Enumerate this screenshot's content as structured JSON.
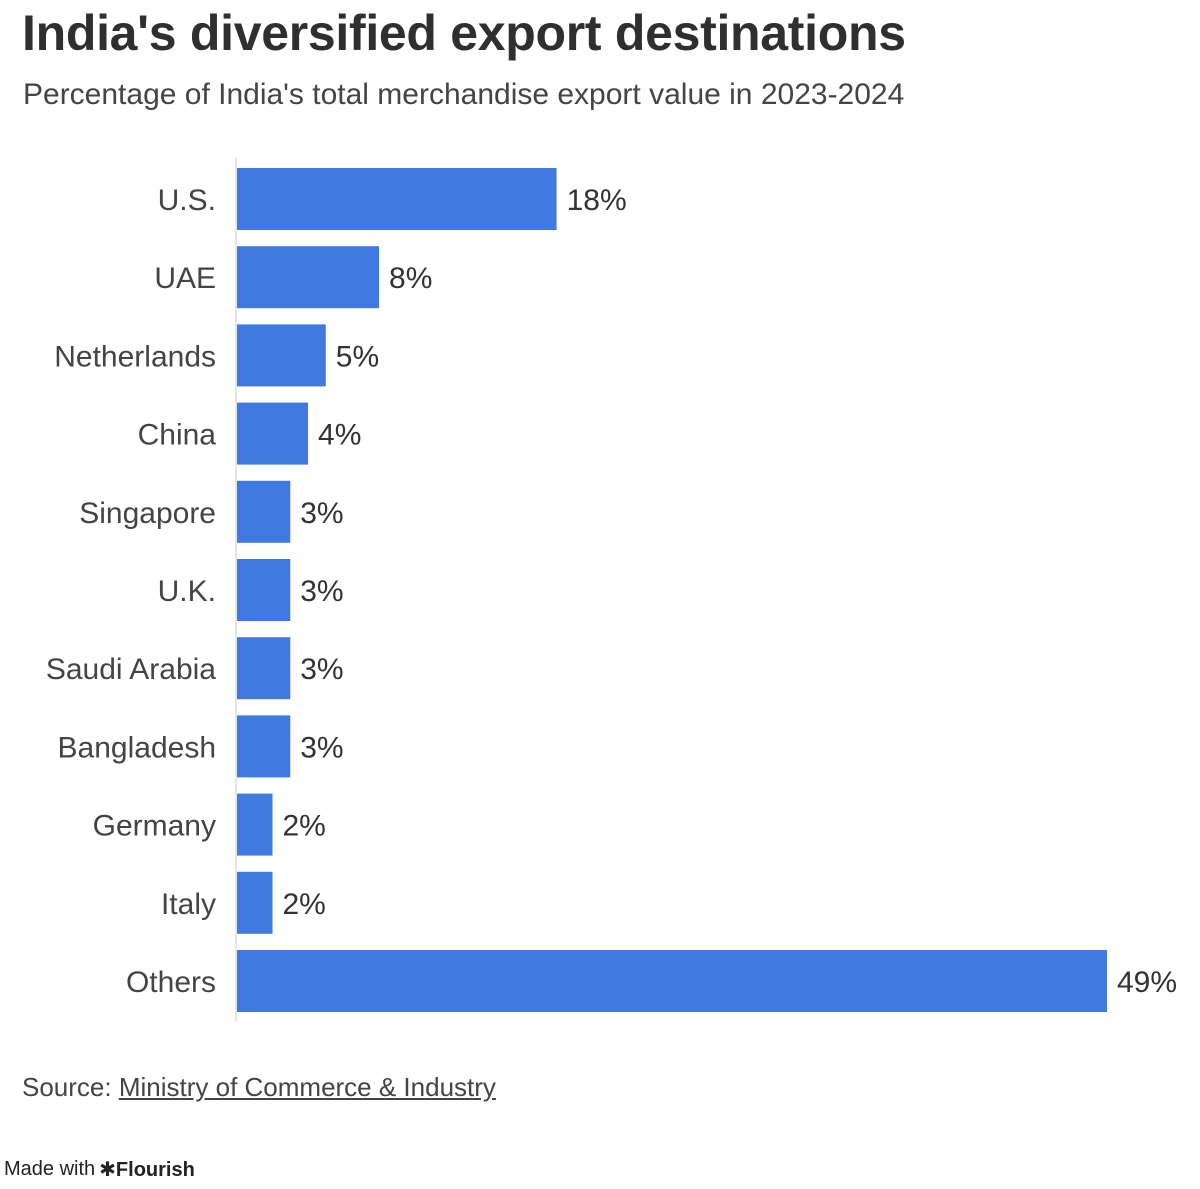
{
  "chart_data": {
    "type": "bar",
    "orientation": "horizontal",
    "title": "India's diversified export destinations",
    "subtitle": "Percentage of India's total merchandise export value in 2023-2024",
    "categories": [
      "U.S.",
      "UAE",
      "Netherlands",
      "China",
      "Singapore",
      "U.K.",
      "Saudi Arabia",
      "Bangladesh",
      "Germany",
      "Italy",
      "Others"
    ],
    "values": [
      18,
      8,
      5,
      4,
      3,
      3,
      3,
      3,
      2,
      2,
      49
    ],
    "value_labels": [
      "18%",
      "8%",
      "5%",
      "4%",
      "3%",
      "3%",
      "3%",
      "3%",
      "2%",
      "2%",
      "49%"
    ],
    "xlim": [
      0,
      49
    ],
    "xlabel": "",
    "ylabel": "",
    "grid": false,
    "bar_color": "#4179e3"
  },
  "source": {
    "prefix": "Source: ",
    "link_text": "Ministry of Commerce & Industry"
  },
  "credit": {
    "prefix": "Made with",
    "star": "✱",
    "brand": "Flourish"
  }
}
